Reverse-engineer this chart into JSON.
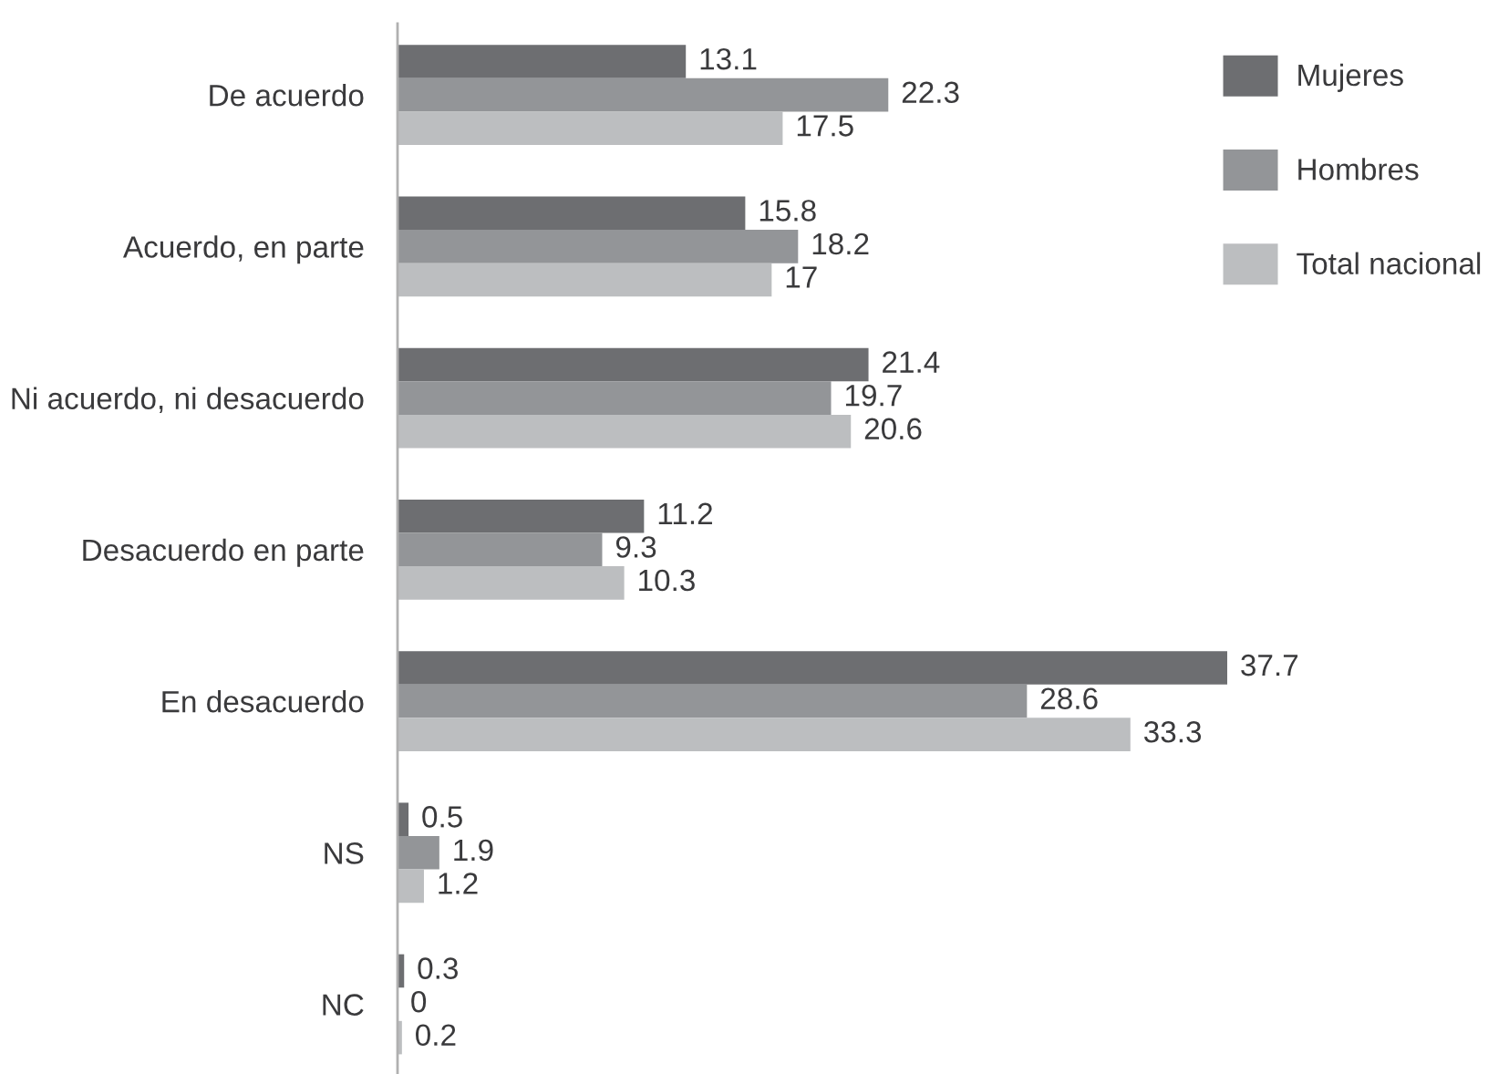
{
  "chart_data": {
    "type": "bar",
    "orientation": "horizontal",
    "categories": [
      "De acuerdo",
      "Acuerdo, en parte",
      "Ni acuerdo, ni desacuerdo",
      "Desacuerdo en parte",
      "En desacuerdo",
      "NS",
      "NC"
    ],
    "series": [
      {
        "name": "Mujeres",
        "color": "#6d6e71",
        "values": [
          13.1,
          15.8,
          21.4,
          11.2,
          37.7,
          0.5,
          0.3
        ]
      },
      {
        "name": "Hombres",
        "color": "#939598",
        "values": [
          22.3,
          18.2,
          19.7,
          9.3,
          28.6,
          1.9,
          0
        ]
      },
      {
        "name": "Total nacional",
        "color": "#bcbec0",
        "values": [
          17.5,
          17,
          20.6,
          10.3,
          33.3,
          1.2,
          0.2
        ]
      }
    ],
    "data_labels": true,
    "legend": "top right",
    "grid": false,
    "tick_labels": "y"
  }
}
